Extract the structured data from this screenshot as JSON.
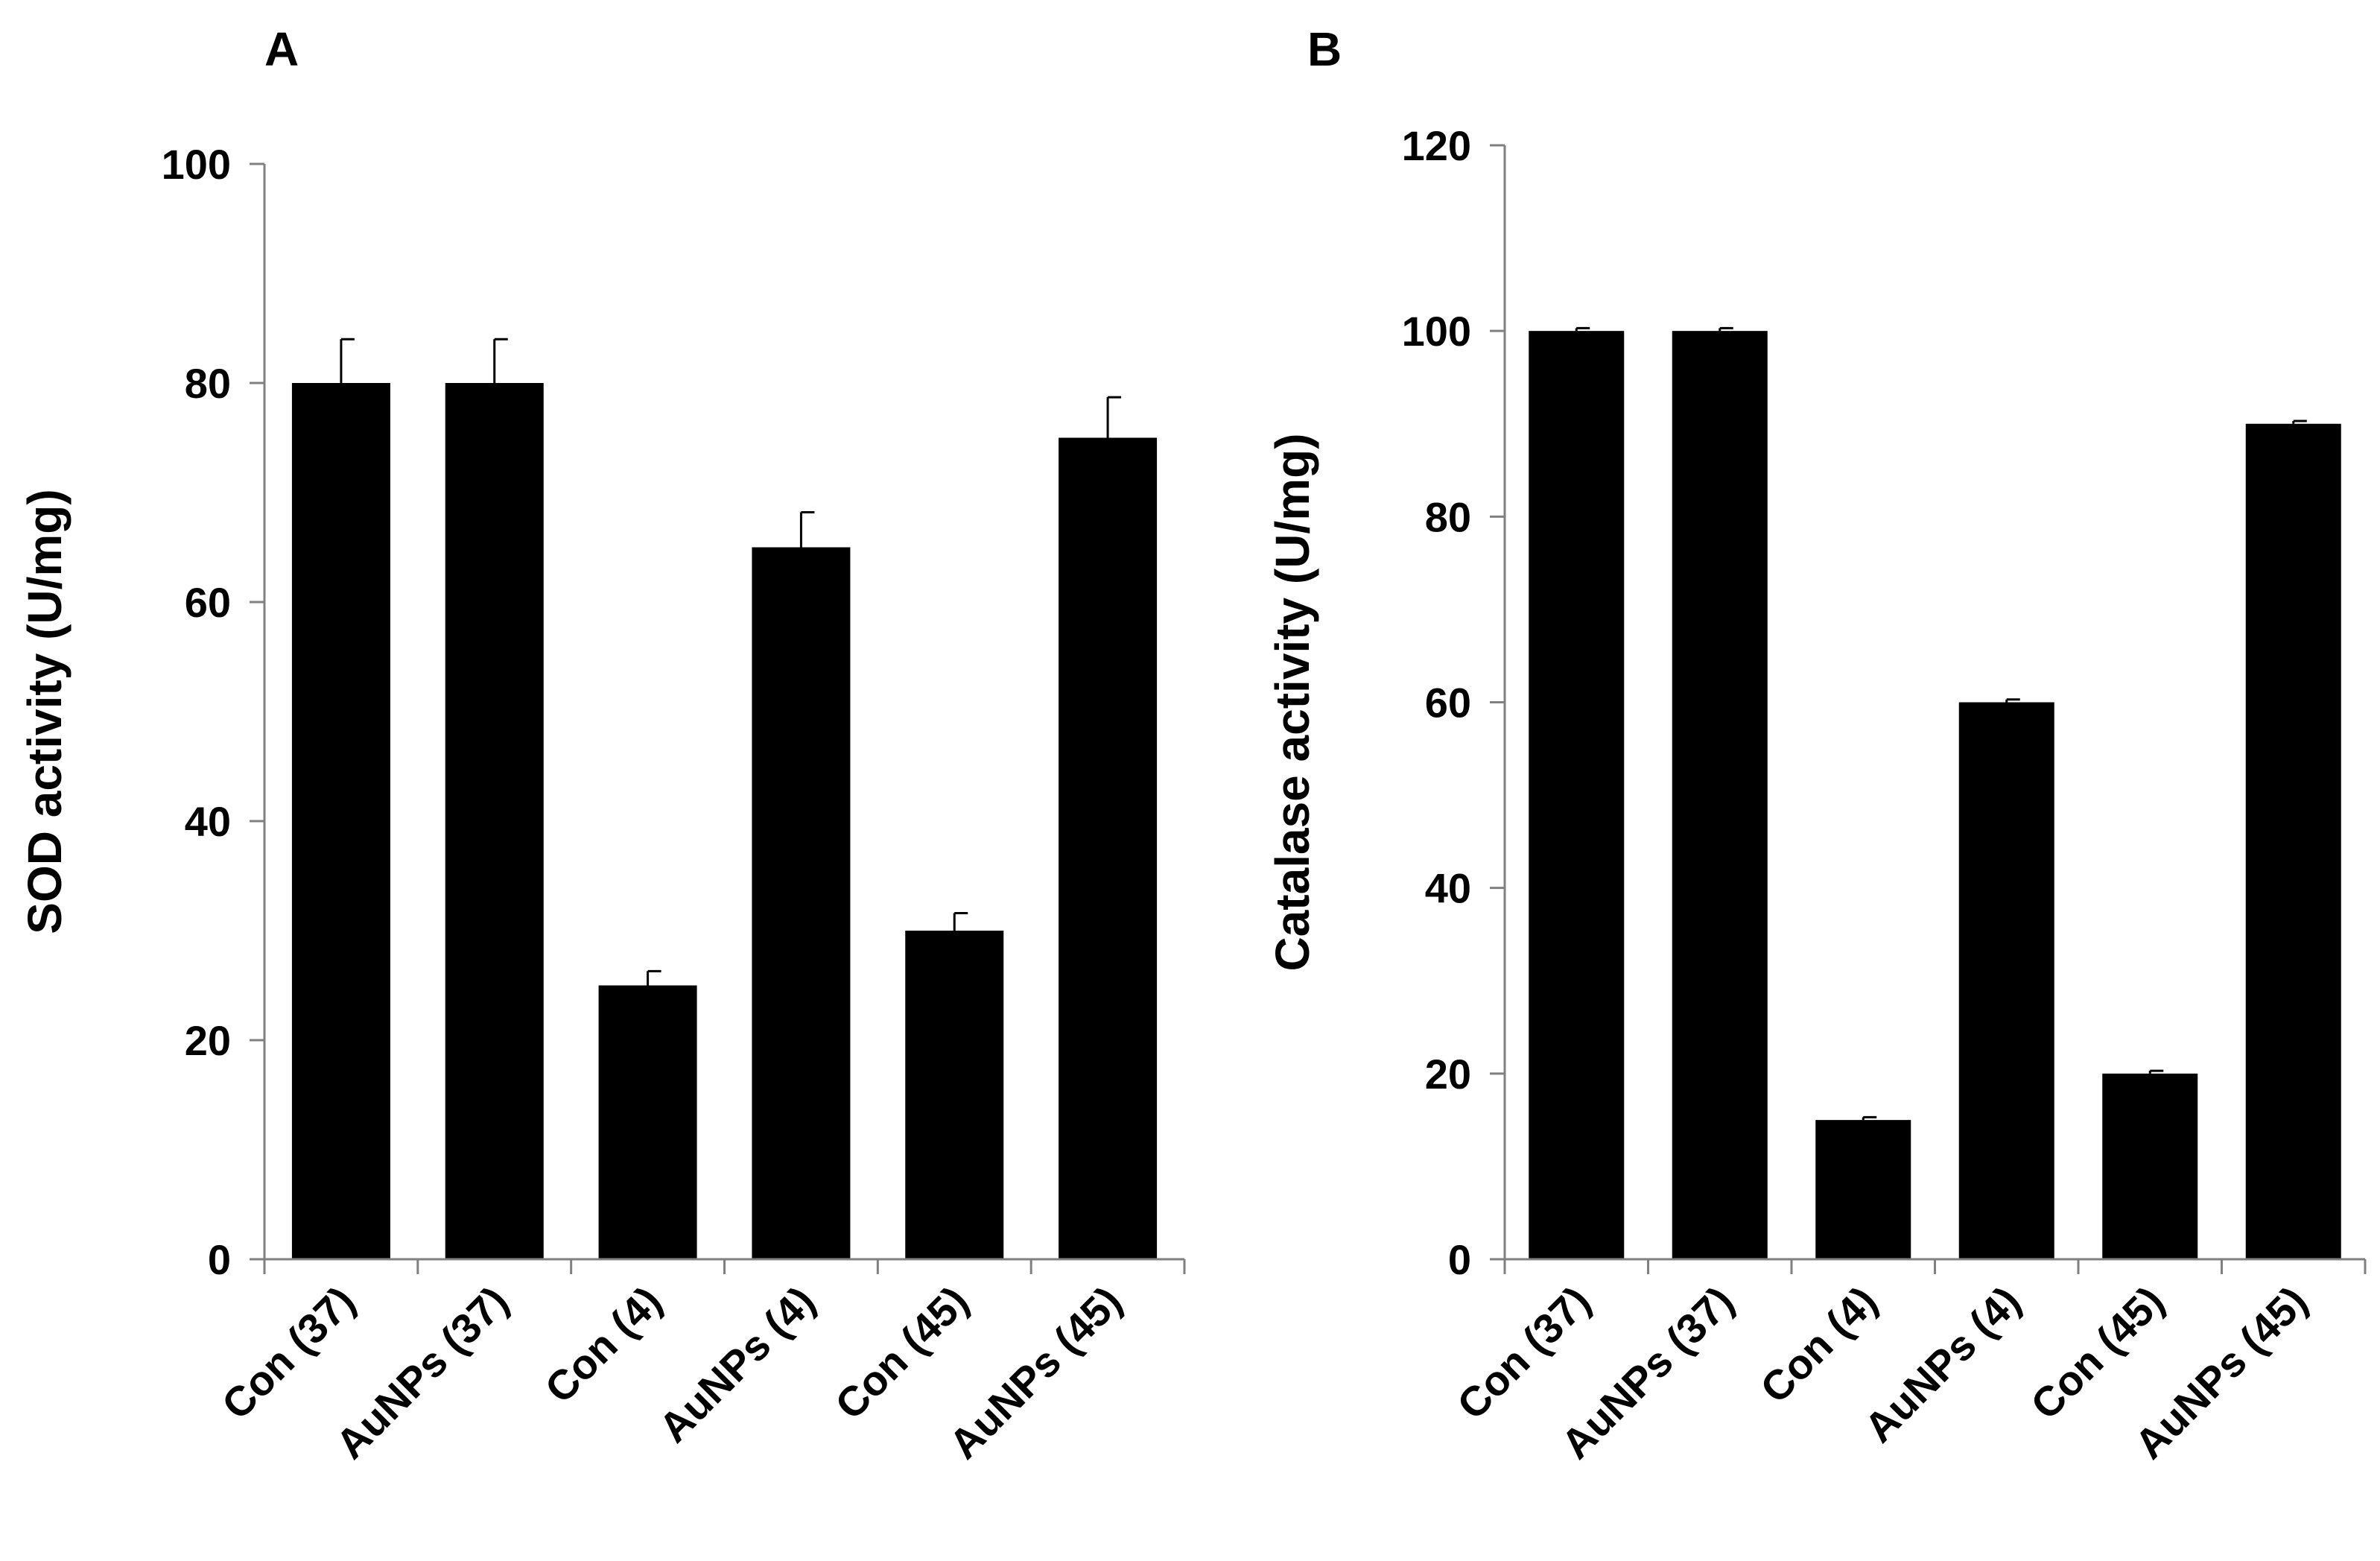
{
  "chart_data": [
    {
      "type": "bar",
      "panel_label": "A",
      "ylabel": "SOD activity (U/mg)",
      "xlabel": "",
      "categories": [
        "Con (37)",
        "AuNPs (37)",
        "Con (4)",
        "AuNPs (4)",
        "Con (45)",
        "AuNPs (45)"
      ],
      "values": [
        80,
        80,
        25,
        65,
        30,
        75
      ],
      "errors": [
        4,
        4,
        1.3,
        3.2,
        1.6,
        3.7
      ],
      "ylim": [
        0,
        100
      ],
      "yticks": [
        0,
        20,
        40,
        60,
        80,
        100
      ],
      "grid": false,
      "bar_color": "#000000"
    },
    {
      "type": "bar",
      "panel_label": "B",
      "ylabel": "Catalase activity (U/mg)",
      "xlabel": "",
      "categories": [
        "Con (37)",
        "AuNPs (37)",
        "Con (4)",
        "AuNPs (4)",
        "Con (45)",
        "AuNPs (45)"
      ],
      "values": [
        100,
        100,
        15,
        60,
        20,
        90
      ],
      "errors": [
        0.3,
        0.3,
        0.3,
        0.3,
        0.3,
        0.3
      ],
      "ylim": [
        0,
        120
      ],
      "yticks": [
        0,
        20,
        40,
        60,
        80,
        100,
        120
      ],
      "grid": false,
      "bar_color": "#000000"
    }
  ]
}
